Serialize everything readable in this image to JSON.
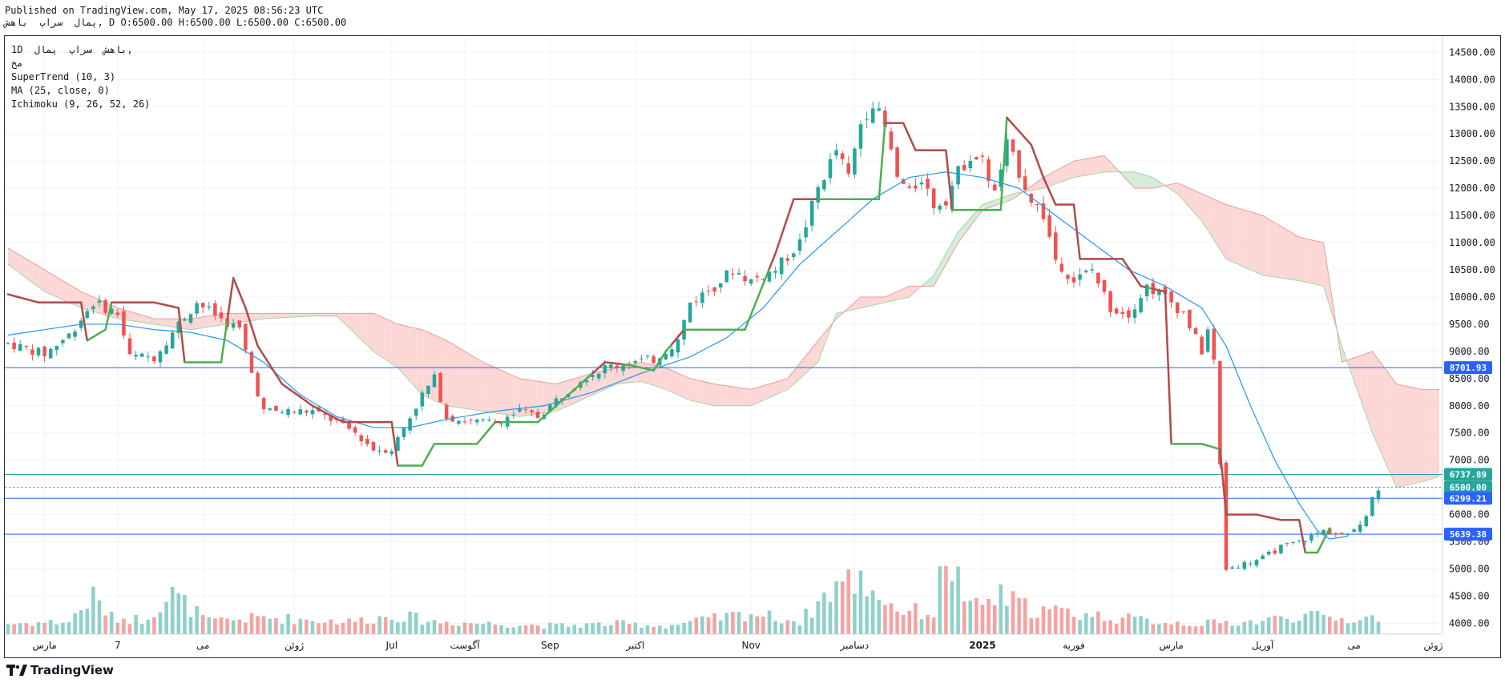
{
  "header": {
    "published": "Published on TradingView.com, May 17, 2025 08:56:23 UTC",
    "ohlc": "پمال  سراپ  باهش, D O:6500.00 H:6500.00 L:6500.00 C:6500.00"
  },
  "legend": {
    "symbol": "1D  باهش  سراپ  پمال,",
    "sub": "مخ",
    "indicators": [
      "SuperTrend (10, 3)",
      "MA (25, close, 0)",
      "Ichimoku (9, 26, 52, 26)"
    ]
  },
  "footer": {
    "brand": "TradingView"
  },
  "colors": {
    "up": "#26a69a",
    "down": "#ef5350",
    "vol_up": "#8fd1c9",
    "vol_down": "#f5a3a1",
    "supertrend_up": "#4caf50",
    "supertrend_down": "#b24a4a",
    "ma": "#2196f3",
    "hline": "#2962ff",
    "cloud_bull": "#d5ecd8",
    "cloud_bear": "#fbd8d6"
  },
  "chart_data": {
    "type": "candlestick",
    "y_axis": {
      "range": [
        3800,
        14800
      ],
      "ticks": [
        4000,
        4500,
        5000,
        5500,
        6000,
        6500,
        7000,
        7500,
        8000,
        8500,
        9000,
        9500,
        10000,
        10500,
        11000,
        11500,
        12000,
        12500,
        13000,
        13500,
        14000,
        14500
      ],
      "tick_labels": [
        "4000.00",
        "4500.00",
        "5000.00",
        "5500.00",
        "6000.00",
        "6500.00",
        "7000.00",
        "7500.00",
        "8000.00",
        "8500.00",
        "9000.00",
        "9500.00",
        "10000.00",
        "10500.00",
        "11000.00",
        "11500.00",
        "12000.00",
        "12500.00",
        "13000.00",
        "13500.00",
        "14000.00",
        "14500.00"
      ]
    },
    "x_axis": {
      "labels": [
        {
          "text": "مارس",
          "i": 6
        },
        {
          "text": "7",
          "i": 18
        },
        {
          "text": "می",
          "i": 32
        },
        {
          "text": "ژوئن",
          "i": 47
        },
        {
          "text": "Jul",
          "i": 63
        },
        {
          "text": "آگوست",
          "i": 75
        },
        {
          "text": "Sep",
          "i": 89
        },
        {
          "text": "اکتبر",
          "i": 103
        },
        {
          "text": "Nov",
          "i": 122
        },
        {
          "text": "دسامبر",
          "i": 139
        },
        {
          "text": "2025",
          "i": 160
        },
        {
          "text": "فوریه",
          "i": 175
        },
        {
          "text": "مارس",
          "i": 191
        },
        {
          "text": "آوریل",
          "i": 206
        },
        {
          "text": "می",
          "i": 221
        },
        {
          "text": "ژوئن",
          "i": 234
        }
      ],
      "bars_total": 236
    },
    "price_levels": [
      {
        "value": 8701.93,
        "label": "8701.93",
        "color": "#2962ff"
      },
      {
        "value": 6737.89,
        "label": "6737.89",
        "color": "#26a69a"
      },
      {
        "value": 6500.0,
        "label": "6500.00",
        "color": "#26a69a"
      },
      {
        "value": 6299.21,
        "label": "6299.21",
        "color": "#2962ff"
      },
      {
        "value": 5639.38,
        "label": "5639.38",
        "color": "#2962ff"
      }
    ],
    "price_anchors": [
      [
        0,
        9150
      ],
      [
        6,
        8950
      ],
      [
        10,
        9300
      ],
      [
        14,
        9900
      ],
      [
        18,
        9700
      ],
      [
        20,
        8900
      ],
      [
        24,
        8900
      ],
      [
        28,
        9500
      ],
      [
        31,
        9900
      ],
      [
        35,
        9600
      ],
      [
        38,
        9400
      ],
      [
        40,
        8600
      ],
      [
        42,
        7900
      ],
      [
        46,
        7900
      ],
      [
        50,
        7900
      ],
      [
        54,
        7700
      ],
      [
        57,
        7500
      ],
      [
        60,
        7200
      ],
      [
        63,
        7200
      ],
      [
        65,
        7600
      ],
      [
        68,
        8200
      ],
      [
        70,
        8500
      ],
      [
        72,
        7800
      ],
      [
        76,
        7700
      ],
      [
        80,
        7700
      ],
      [
        84,
        7900
      ],
      [
        87,
        7800
      ],
      [
        90,
        8100
      ],
      [
        94,
        8500
      ],
      [
        98,
        8700
      ],
      [
        102,
        8800
      ],
      [
        106,
        8850
      ],
      [
        110,
        9200
      ],
      [
        112,
        9900
      ],
      [
        116,
        10200
      ],
      [
        119,
        10500
      ],
      [
        122,
        10300
      ],
      [
        126,
        10500
      ],
      [
        130,
        11000
      ],
      [
        133,
        12000
      ],
      [
        136,
        12700
      ],
      [
        138,
        12200
      ],
      [
        140,
        13200
      ],
      [
        142,
        13600
      ],
      [
        144,
        13100
      ],
      [
        146,
        12200
      ],
      [
        148,
        11900
      ],
      [
        150,
        12200
      ],
      [
        152,
        11700
      ],
      [
        154,
        11800
      ],
      [
        156,
        12300
      ],
      [
        158,
        12600
      ],
      [
        160,
        12500
      ],
      [
        162,
        11900
      ],
      [
        164,
        12800
      ],
      [
        166,
        12300
      ],
      [
        168,
        11800
      ],
      [
        170,
        11500
      ],
      [
        172,
        10700
      ],
      [
        175,
        10300
      ],
      [
        178,
        10500
      ],
      [
        181,
        9800
      ],
      [
        184,
        9700
      ],
      [
        187,
        10200
      ],
      [
        190,
        10000
      ],
      [
        193,
        9700
      ],
      [
        196,
        9000
      ],
      [
        197,
        9400
      ],
      [
        198,
        8800
      ],
      [
        200,
        5000
      ],
      [
        203,
        5100
      ],
      [
        206,
        5200
      ],
      [
        209,
        5400
      ],
      [
        212,
        5500
      ],
      [
        216,
        5700
      ],
      [
        220,
        5600
      ],
      [
        223,
        6000
      ],
      [
        224,
        6300
      ],
      [
        225,
        6500
      ]
    ],
    "volume_anchors": [
      [
        0,
        0.25
      ],
      [
        10,
        0.3
      ],
      [
        14,
        0.9
      ],
      [
        17,
        0.4
      ],
      [
        22,
        0.35
      ],
      [
        27,
        0.95
      ],
      [
        33,
        0.3
      ],
      [
        42,
        0.4
      ],
      [
        56,
        0.3
      ],
      [
        64,
        0.45
      ],
      [
        70,
        0.3
      ],
      [
        80,
        0.25
      ],
      [
        90,
        0.2
      ],
      [
        100,
        0.25
      ],
      [
        108,
        0.2
      ],
      [
        115,
        0.35
      ],
      [
        122,
        0.5
      ],
      [
        130,
        0.3
      ],
      [
        136,
        1.2
      ],
      [
        140,
        1.3
      ],
      [
        146,
        0.6
      ],
      [
        152,
        0.5
      ],
      [
        154,
        2.0
      ],
      [
        158,
        0.6
      ],
      [
        163,
        0.9
      ],
      [
        168,
        0.6
      ],
      [
        175,
        0.5
      ],
      [
        185,
        0.35
      ],
      [
        195,
        0.25
      ],
      [
        205,
        0.3
      ],
      [
        212,
        0.45
      ],
      [
        220,
        0.35
      ],
      [
        225,
        0.4
      ]
    ],
    "supertrend_anchors": [
      [
        0,
        10050
      ],
      [
        5,
        9900
      ],
      [
        12,
        9900
      ],
      [
        13,
        9200
      ],
      [
        16,
        9400
      ],
      [
        17,
        9900
      ],
      [
        20,
        9900
      ],
      [
        24,
        9900
      ],
      [
        28,
        9800
      ],
      [
        29,
        8800
      ],
      [
        35,
        8800
      ],
      [
        37,
        10350
      ],
      [
        39,
        9800
      ],
      [
        41,
        9100
      ],
      [
        45,
        8400
      ],
      [
        50,
        8000
      ],
      [
        55,
        7700
      ],
      [
        60,
        7700
      ],
      [
        63,
        7700
      ],
      [
        64,
        6900
      ],
      [
        68,
        6900
      ],
      [
        70,
        7300
      ],
      [
        77,
        7300
      ],
      [
        80,
        7700
      ],
      [
        87,
        7700
      ],
      [
        93,
        8300
      ],
      [
        98,
        8800
      ],
      [
        102,
        8750
      ],
      [
        106,
        8650
      ],
      [
        108,
        9000
      ],
      [
        111,
        9400
      ],
      [
        118,
        9400
      ],
      [
        121,
        9400
      ],
      [
        126,
        10800
      ],
      [
        129,
        11800
      ],
      [
        138,
        11800
      ],
      [
        143,
        11800
      ],
      [
        144,
        13200
      ],
      [
        147,
        13200
      ],
      [
        149,
        12700
      ],
      [
        154,
        12700
      ],
      [
        155,
        11600
      ],
      [
        163,
        11600
      ],
      [
        164,
        13300
      ],
      [
        166,
        13050
      ],
      [
        168,
        12800
      ],
      [
        170,
        12200
      ],
      [
        172,
        11700
      ],
      [
        175,
        11700
      ],
      [
        176,
        10700
      ],
      [
        183,
        10700
      ],
      [
        186,
        10200
      ],
      [
        190,
        10100
      ],
      [
        191,
        7300
      ],
      [
        196,
        7300
      ],
      [
        199,
        7200
      ],
      [
        200,
        6000
      ],
      [
        205,
        6000
      ],
      [
        209,
        5900
      ],
      [
        212,
        5900
      ],
      [
        213,
        5300
      ],
      [
        215,
        5300
      ],
      [
        217,
        5750
      ]
    ],
    "ma_anchors": [
      [
        0,
        9300
      ],
      [
        6,
        9400
      ],
      [
        12,
        9500
      ],
      [
        18,
        9500
      ],
      [
        24,
        9400
      ],
      [
        30,
        9350
      ],
      [
        36,
        9200
      ],
      [
        42,
        8800
      ],
      [
        48,
        8200
      ],
      [
        54,
        7800
      ],
      [
        60,
        7600
      ],
      [
        66,
        7600
      ],
      [
        72,
        7750
      ],
      [
        80,
        7900
      ],
      [
        88,
        8000
      ],
      [
        96,
        8250
      ],
      [
        104,
        8600
      ],
      [
        112,
        8900
      ],
      [
        118,
        9250
      ],
      [
        124,
        9800
      ],
      [
        130,
        10600
      ],
      [
        136,
        11200
      ],
      [
        142,
        11800
      ],
      [
        148,
        12200
      ],
      [
        154,
        12300
      ],
      [
        160,
        12200
      ],
      [
        166,
        12000
      ],
      [
        172,
        11500
      ],
      [
        178,
        11000
      ],
      [
        184,
        10500
      ],
      [
        190,
        10200
      ],
      [
        196,
        9800
      ],
      [
        200,
        9100
      ],
      [
        204,
        8000
      ],
      [
        208,
        7000
      ],
      [
        212,
        6200
      ],
      [
        215,
        5700
      ],
      [
        217,
        5550
      ],
      [
        220,
        5600
      ]
    ],
    "cloud_anchors": [
      [
        0,
        10600,
        10900
      ],
      [
        6,
        10100,
        10500
      ],
      [
        12,
        9800,
        10100
      ],
      [
        18,
        9600,
        9800
      ],
      [
        24,
        9500,
        9600
      ],
      [
        30,
        9400,
        9600
      ],
      [
        36,
        9500,
        9700
      ],
      [
        42,
        9600,
        9700
      ],
      [
        50,
        9650,
        9700
      ],
      [
        54,
        9650,
        9700
      ],
      [
        60,
        9000,
        9700
      ],
      [
        64,
        8700,
        9500
      ],
      [
        68,
        8200,
        9400
      ],
      [
        72,
        8000,
        9200
      ],
      [
        78,
        7900,
        8800
      ],
      [
        84,
        7800,
        8500
      ],
      [
        90,
        7900,
        8400
      ],
      [
        96,
        8200,
        8600
      ],
      [
        100,
        8400,
        8700
      ],
      [
        104,
        8450,
        8800
      ],
      [
        108,
        8300,
        8700
      ],
      [
        112,
        8100,
        8500
      ],
      [
        116,
        8000,
        8400
      ],
      [
        122,
        8000,
        8300
      ],
      [
        128,
        8300,
        8500
      ],
      [
        133,
        8800,
        9200
      ],
      [
        136,
        9700,
        9600
      ],
      [
        140,
        9800,
        10000
      ],
      [
        144,
        9900,
        10000
      ],
      [
        148,
        10000,
        10200
      ],
      [
        152,
        10400,
        10200
      ],
      [
        156,
        11200,
        11000
      ],
      [
        160,
        11700,
        11600
      ],
      [
        165,
        11900,
        11800
      ],
      [
        170,
        12000,
        12200
      ],
      [
        175,
        12200,
        12500
      ],
      [
        180,
        12300,
        12600
      ],
      [
        185,
        12300,
        12000
      ],
      [
        188,
        12200,
        12000
      ],
      [
        192,
        11900,
        12100
      ],
      [
        196,
        11400,
        11900
      ],
      [
        200,
        10700,
        11700
      ],
      [
        206,
        10400,
        11500
      ],
      [
        212,
        10300,
        11100
      ],
      [
        216,
        10200,
        11000
      ],
      [
        219,
        9100,
        8800
      ],
      [
        224,
        7500,
        9000
      ],
      [
        228,
        6500,
        8400
      ],
      [
        232,
        6600,
        8300
      ],
      [
        235,
        6700,
        8300
      ]
    ]
  }
}
